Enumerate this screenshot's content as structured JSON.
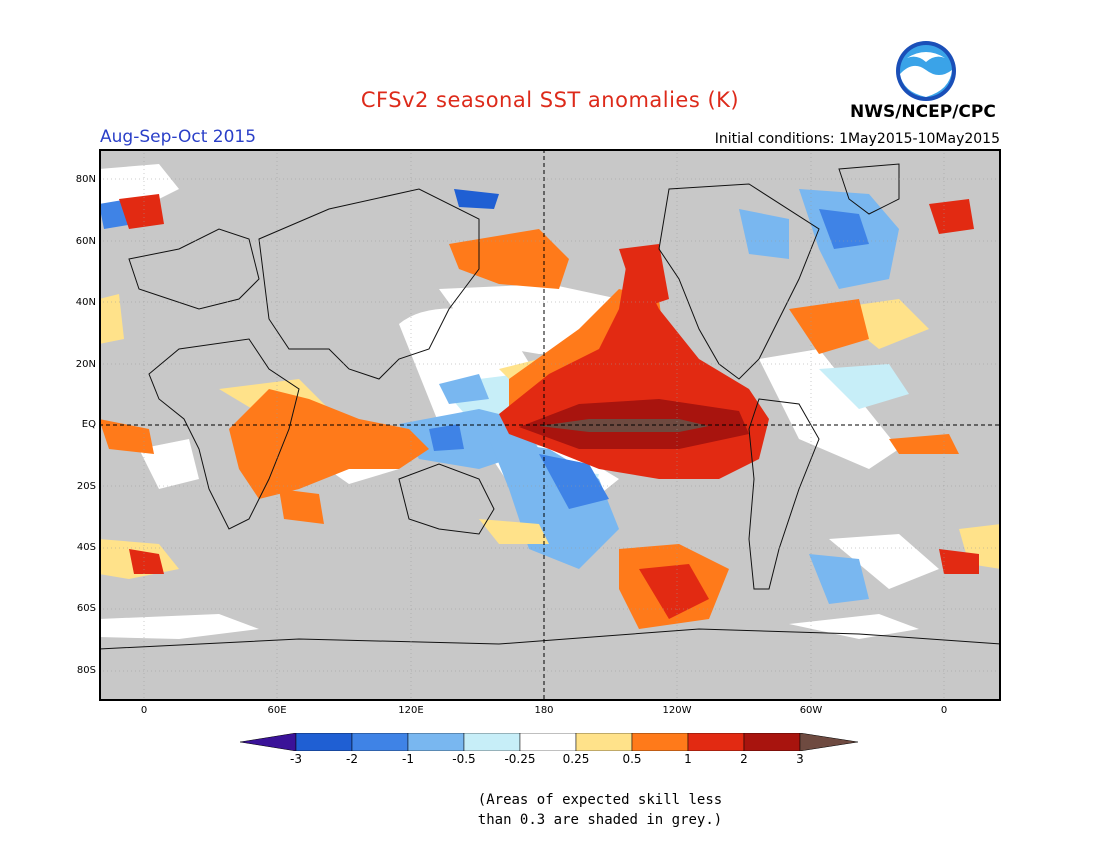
{
  "header": {
    "title": "CFSv2 seasonal SST anomalies (K)",
    "season": "Aug-Sep-Oct 2015",
    "initial_conditions": "Initial conditions: 1May2015-10May2015",
    "agency": "NWS/NCEP/CPC",
    "logo_text": "NOAA"
  },
  "colors": {
    "title": "#dd2a1a",
    "season": "#2a3fc8",
    "land": "#c8c8c8",
    "ocean_neutral": "#ffffff"
  },
  "map": {
    "lat_labels": [
      "80N",
      "60N",
      "40N",
      "20N",
      "EQ",
      "20S",
      "40S",
      "60S",
      "80S"
    ],
    "lon_labels": [
      "0",
      "60E",
      "120E",
      "180",
      "120W",
      "60W",
      "0"
    ]
  },
  "legend": {
    "levels": [
      "-3",
      "-2",
      "-1",
      "-0.5",
      "-0.25",
      "0.25",
      "0.5",
      "1",
      "2",
      "3"
    ],
    "colors": [
      "#3a1298",
      "#1f5fd3",
      "#3f83e6",
      "#79b7f0",
      "#c7eef8",
      "#ffffff",
      "#ffe28a",
      "#ff7a1a",
      "#e22a12",
      "#a8140e",
      "#6e4a40"
    ]
  },
  "note": {
    "line1": "(Areas of expected skill less",
    "line2": "than 0.3 are shaded in grey.)"
  }
}
